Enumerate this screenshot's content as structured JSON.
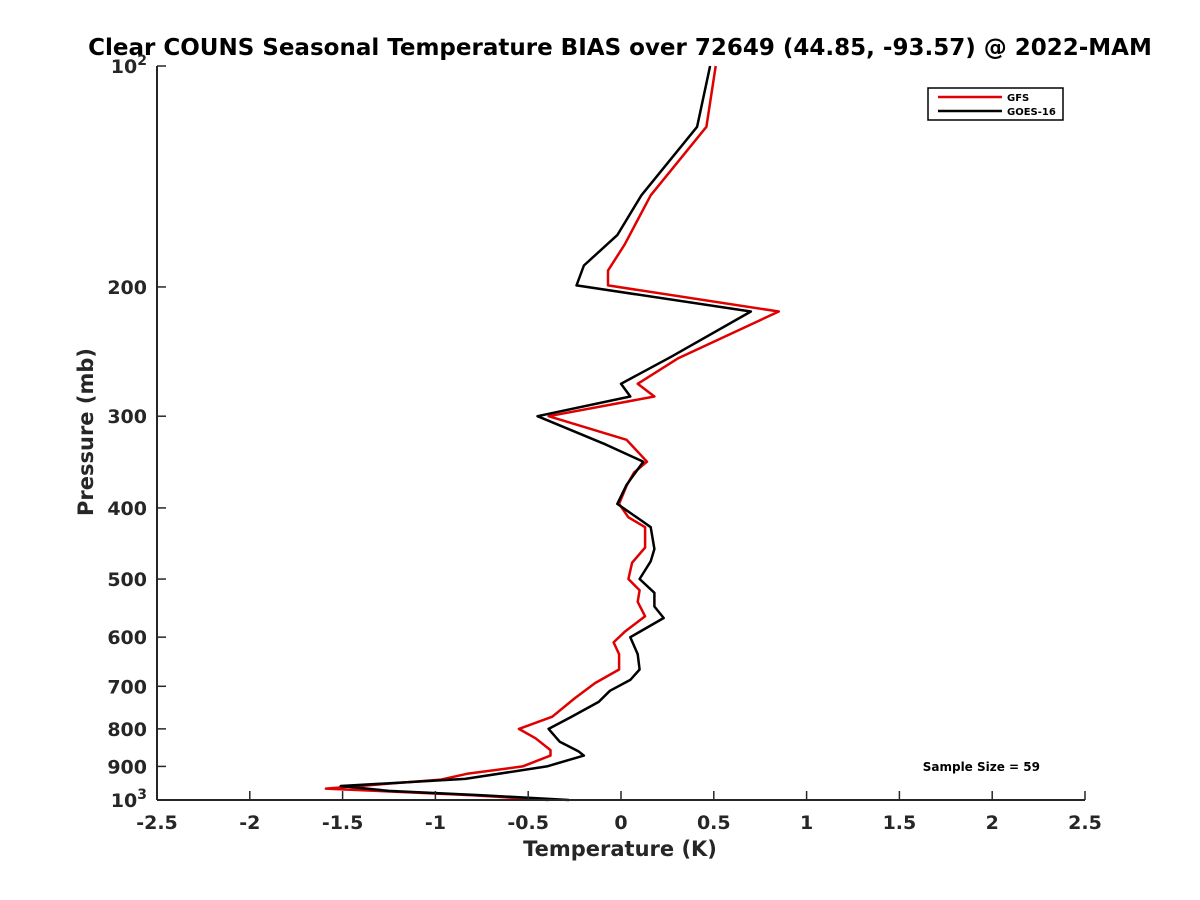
{
  "chart_data": {
    "type": "line",
    "title": "Clear COUNS Seasonal Temperature BIAS over 72649 (44.85, -93.57) @ 2022-MAM",
    "xlabel": "Temperature (K)",
    "ylabel": "Pressure (mb)",
    "xlim": [
      -2.5,
      2.5
    ],
    "ylim": [
      100,
      1000
    ],
    "yscale": "log",
    "y_reversed": true,
    "x_ticks": [
      -2.5,
      -2,
      -1.5,
      -1,
      -0.5,
      0,
      0.5,
      1,
      1.5,
      2,
      2.5
    ],
    "x_tick_labels": [
      "-2.5",
      "-2",
      "-1.5",
      "-1",
      "-0.5",
      "0",
      "0.5",
      "1",
      "1.5",
      "2",
      "2.5"
    ],
    "y_ticks": [
      {
        "value": 100,
        "label": "10",
        "sup": "2"
      },
      {
        "value": 200,
        "label": "200",
        "sup": ""
      },
      {
        "value": 300,
        "label": "300",
        "sup": ""
      },
      {
        "value": 400,
        "label": "400",
        "sup": ""
      },
      {
        "value": 500,
        "label": "500",
        "sup": ""
      },
      {
        "value": 600,
        "label": "600",
        "sup": ""
      },
      {
        "value": 700,
        "label": "700",
        "sup": ""
      },
      {
        "value": 800,
        "label": "800",
        "sup": ""
      },
      {
        "value": 900,
        "label": "900",
        "sup": ""
      },
      {
        "value": 1000,
        "label": "10",
        "sup": "3"
      }
    ],
    "grid": false,
    "legend_position": "top-right",
    "series": [
      {
        "name": "GFS",
        "color": "#e00000",
        "points": [
          [
            0.51,
            100
          ],
          [
            0.46,
            121
          ],
          [
            0.16,
            150
          ],
          [
            0.02,
            175
          ],
          [
            -0.07,
            190
          ],
          [
            -0.07,
            199
          ],
          [
            0.85,
            216
          ],
          [
            0.31,
            250
          ],
          [
            0.09,
            271
          ],
          [
            0.18,
            282
          ],
          [
            -0.39,
            300
          ],
          [
            0.03,
            323
          ],
          [
            0.14,
            346
          ],
          [
            0.07,
            358
          ],
          [
            0.03,
            373
          ],
          [
            -0.01,
            395
          ],
          [
            0.04,
            412
          ],
          [
            0.13,
            425
          ],
          [
            0.13,
            453
          ],
          [
            0.06,
            475
          ],
          [
            0.04,
            500
          ],
          [
            0.1,
            518
          ],
          [
            0.09,
            537
          ],
          [
            0.13,
            562
          ],
          [
            0.02,
            590
          ],
          [
            -0.04,
            610
          ],
          [
            -0.01,
            633
          ],
          [
            -0.01,
            664
          ],
          [
            -0.14,
            693
          ],
          [
            -0.25,
            727
          ],
          [
            -0.37,
            770
          ],
          [
            -0.55,
            800
          ],
          [
            -0.46,
            824
          ],
          [
            -0.38,
            855
          ],
          [
            -0.38,
            870
          ],
          [
            -0.53,
            900
          ],
          [
            -0.83,
            921
          ],
          [
            -0.97,
            938
          ],
          [
            -1.59,
            965
          ],
          [
            -1.2,
            975
          ],
          [
            -0.8,
            985
          ],
          [
            -0.39,
            1000
          ]
        ]
      },
      {
        "name": "GOES-16",
        "color": "#000000",
        "points": [
          [
            0.48,
            100
          ],
          [
            0.41,
            121
          ],
          [
            0.11,
            150
          ],
          [
            -0.02,
            170
          ],
          [
            -0.2,
            187
          ],
          [
            -0.24,
            199
          ],
          [
            0.7,
            216
          ],
          [
            0.27,
            249
          ],
          [
            0.0,
            271
          ],
          [
            0.05,
            282
          ],
          [
            -0.45,
            300
          ],
          [
            -0.08,
            328
          ],
          [
            0.12,
            346
          ],
          [
            0.03,
            372
          ],
          [
            -0.02,
            395
          ],
          [
            0.12,
            418
          ],
          [
            0.16,
            425
          ],
          [
            0.18,
            455
          ],
          [
            0.16,
            473
          ],
          [
            0.1,
            500
          ],
          [
            0.18,
            522
          ],
          [
            0.18,
            545
          ],
          [
            0.23,
            565
          ],
          [
            0.05,
            600
          ],
          [
            0.09,
            633
          ],
          [
            0.1,
            664
          ],
          [
            0.05,
            686
          ],
          [
            -0.06,
            710
          ],
          [
            -0.12,
            735
          ],
          [
            -0.27,
            771
          ],
          [
            -0.39,
            800
          ],
          [
            -0.33,
            833
          ],
          [
            -0.23,
            858
          ],
          [
            -0.2,
            870
          ],
          [
            -0.4,
            900
          ],
          [
            -0.84,
            936
          ],
          [
            -1.51,
            957
          ],
          [
            -1.25,
            972
          ],
          [
            -0.75,
            985
          ],
          [
            -0.28,
            1000
          ]
        ]
      }
    ],
    "annotation": "Sample Size = 59"
  }
}
